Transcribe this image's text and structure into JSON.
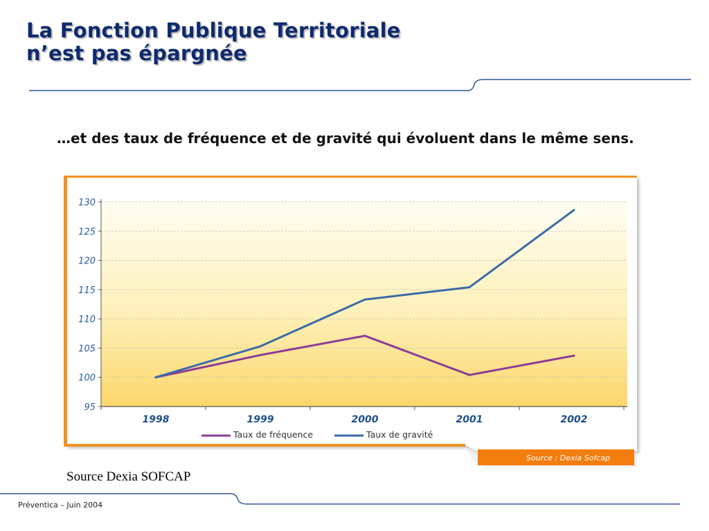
{
  "title": {
    "line1": "La Fonction Publique Territoriale",
    "line2": "n’est pas épargnée"
  },
  "subtitle": "…et des taux de fréquence et de gravité qui évoluent dans le même sens.",
  "chart_data": {
    "type": "line",
    "categories": [
      "1998",
      "1999",
      "2000",
      "2001",
      "2002"
    ],
    "series": [
      {
        "name": "Taux de fréquence",
        "values": [
          100,
          103.8,
          107.1,
          100.4,
          103.7
        ],
        "color": "#8b3a96"
      },
      {
        "name": "Taux de gravité",
        "values": [
          100,
          105.3,
          113.3,
          115.4,
          128.6
        ],
        "color": "#3a6aa8"
      }
    ],
    "yticks": [
      "95",
      "100",
      "105",
      "110",
      "115",
      "120",
      "125",
      "130"
    ],
    "ylim": [
      95,
      130
    ],
    "grid": true,
    "legend_position": "bottom",
    "source_tab": "Source : Dexia Sofcap",
    "colors": {
      "frame": "#f39121",
      "tick_text": "#2a5d9f",
      "background_top": "#fffbea",
      "background_bottom": "#fbd86c"
    }
  },
  "source_caption": "Source Dexia SOFCAP",
  "footer": "Préventica – Juin 2004"
}
